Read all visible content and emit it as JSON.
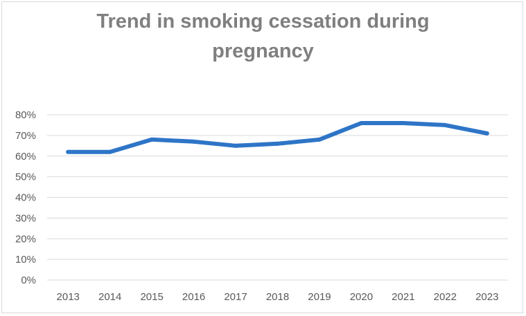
{
  "chart_data": {
    "type": "line",
    "title_lines": [
      "Trend in smoking cessation during",
      "pregnancy"
    ],
    "categories": [
      "2013",
      "2014",
      "2015",
      "2016",
      "2017",
      "2018",
      "2019",
      "2020",
      "2021",
      "2022",
      "2023"
    ],
    "series": [
      {
        "values": [
          62,
          62,
          68,
          67,
          65,
          66,
          68,
          76,
          76,
          75,
          71
        ],
        "color": "#2e75c7"
      }
    ],
    "y_ticks": [
      "0%",
      "10%",
      "20%",
      "30%",
      "40%",
      "50%",
      "60%",
      "70%",
      "80%"
    ],
    "ylim": [
      0,
      80
    ],
    "y_unit": "%",
    "grid": true,
    "legend": "none",
    "gridline_color": "#d9d9d9",
    "text_color": "#595959",
    "title_color": "#7f7f7f"
  }
}
